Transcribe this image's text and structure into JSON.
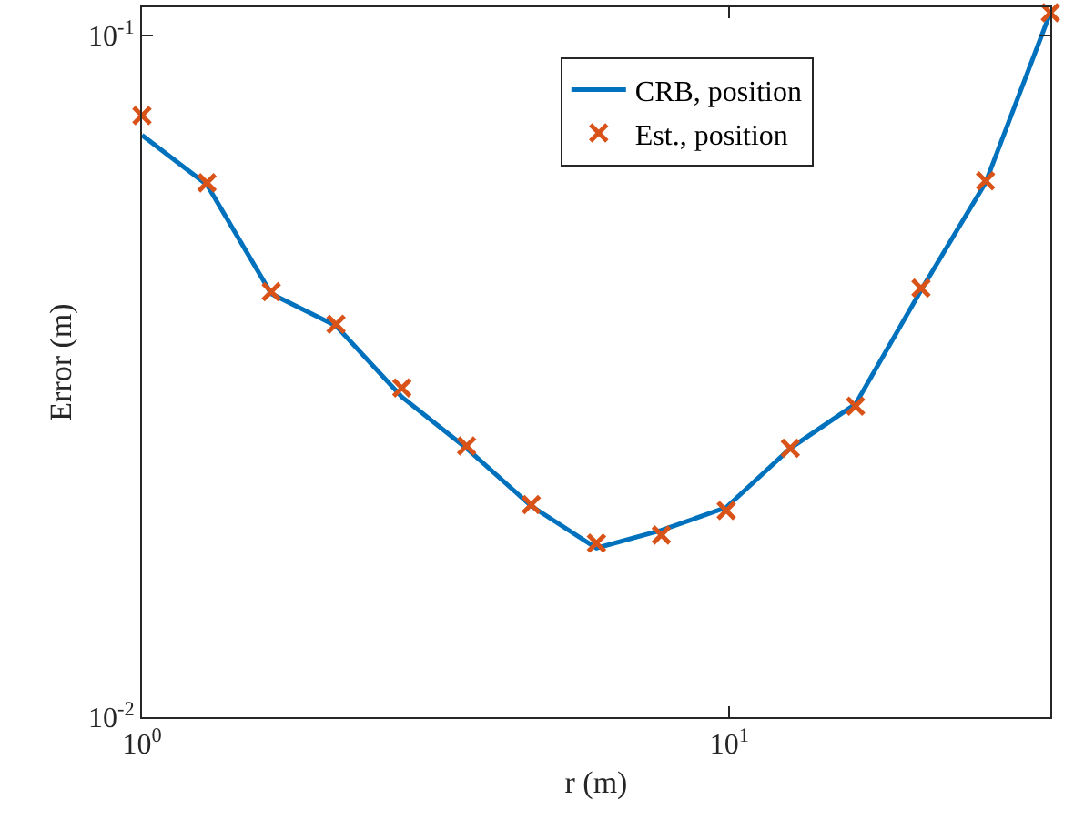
{
  "chart_data": {
    "type": "line",
    "xlabel": "r (m)",
    "ylabel": "Error (m)",
    "log": "xy",
    "legend": "top",
    "x": [
      1,
      1.29,
      1.66,
      2.14,
      2.77,
      3.57,
      4.6,
      5.94,
      7.66,
      9.88,
      12.7,
      16.4,
      21.2,
      27.3,
      35.2
    ],
    "xlim": [
      1,
      35.2
    ],
    "xticks": [
      {
        "value": 1,
        "label": "10$^{0}$"
      },
      {
        "value": 10,
        "label": "10$^{1}$"
      }
    ],
    "ylim": [
      0.01,
      0.11
    ],
    "yticks": [
      {
        "value": 0.01,
        "label": "10$^{-2}$"
      },
      {
        "value": 0.1,
        "label": "10$^{-1}$"
      }
    ],
    "series": [
      {
        "name": "CRB, position",
        "color": "#0072bd",
        "line_style": "solid",
        "marker": "none",
        "values": [
          0.0714,
          0.0604,
          0.0418,
          0.0375,
          0.0295,
          0.0248,
          0.0204,
          0.0177,
          0.0188,
          0.0203,
          0.0248,
          0.0288,
          0.0423,
          0.0608,
          0.108
        ]
      },
      {
        "name": "Est., position",
        "type": "scatter",
        "color": "#d95319",
        "marker": "cross",
        "values": [
          0.0763,
          0.0608,
          0.0421,
          0.0377,
          0.0304,
          0.025,
          0.0205,
          0.018,
          0.0185,
          0.0201,
          0.0248,
          0.0286,
          0.0426,
          0.0612,
          0.108
        ]
      }
    ]
  }
}
